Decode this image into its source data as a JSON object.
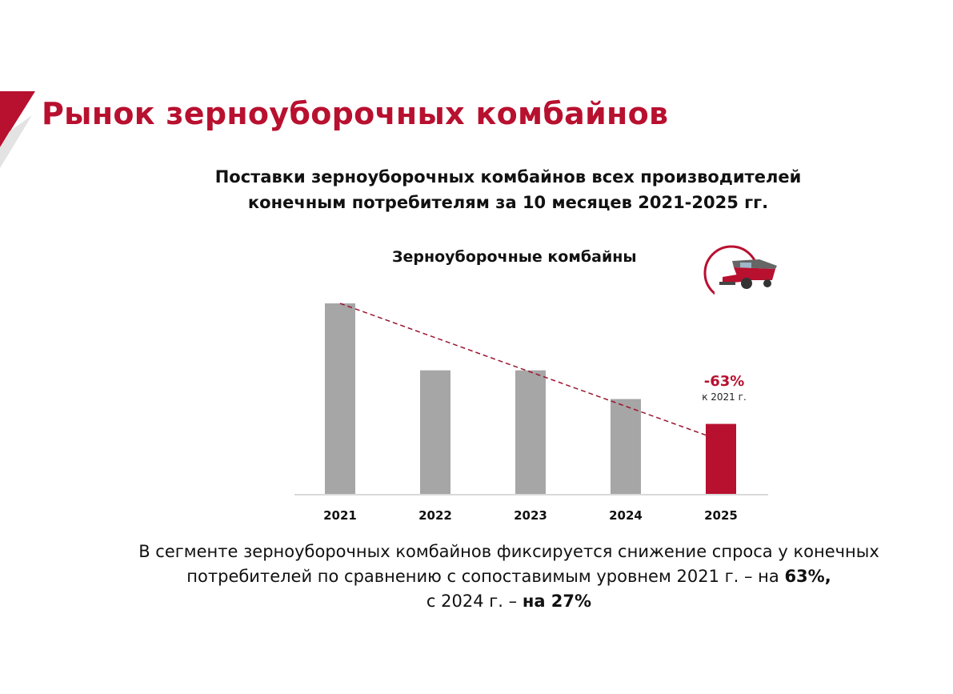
{
  "slide": {
    "title": "Рынок зерноуборочных комбайнов",
    "subtitle_line1": "Поставки зерноуборочных комбайнов всех производителей",
    "subtitle_line2": "конечным потребителям за 10 месяцев 2021-2025 гг."
  },
  "logo": {
    "icon": "combine-harvester-icon"
  },
  "annotation": {
    "value": "-63%",
    "note": "к 2021 г."
  },
  "footer": {
    "line1": "В сегменте зерноуборочных комбайнов фиксируется снижение спроса у конечных",
    "line2_text": "потребителей по сравнению с сопоставимым уровнем 2021 г. – на ",
    "line2_bold": "63%,",
    "line3_text": "с 2024 г. – ",
    "line3_bold": "на 27%"
  },
  "colors": {
    "brand": "#b8102f",
    "bar": "#a6a6a6",
    "highlight_bar": "#b8102f",
    "trend": "#9a1530",
    "axis": "#d9d9d9",
    "accent_gray": "#e3e3e3"
  },
  "chart_data": {
    "type": "bar",
    "title": "Зерноуборочные комбайны",
    "categories": [
      "2021",
      "2022",
      "2023",
      "2024",
      "2025"
    ],
    "values": [
      100,
      65,
      65,
      50,
      37
    ],
    "highlight_index": 4,
    "trendline": {
      "style": "dashed",
      "from_index": 0,
      "to_index": 4
    },
    "xlabel": "",
    "ylabel": "",
    "ylim": [
      0,
      100
    ],
    "grid": false,
    "legend": "none"
  }
}
